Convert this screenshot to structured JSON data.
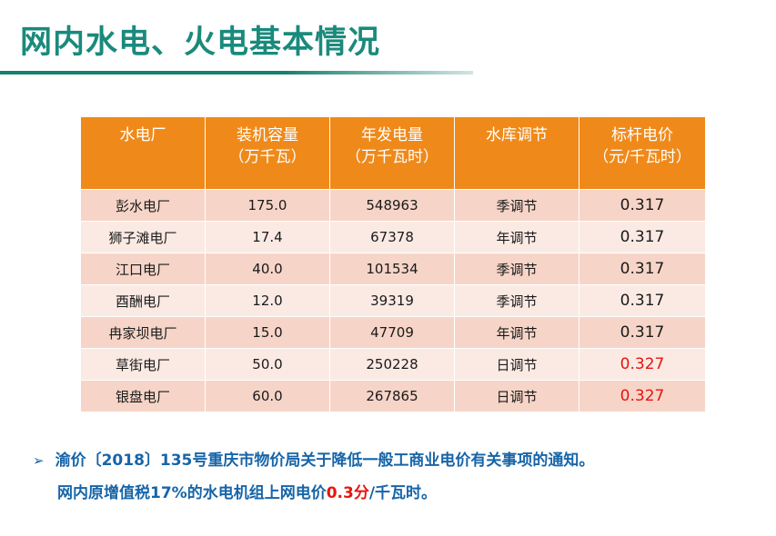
{
  "title": "网内水电、火电基本情况",
  "table": {
    "headers": [
      {
        "line1": "水电厂",
        "line2": ""
      },
      {
        "line1": "装机容量",
        "line2": "（万千瓦）"
      },
      {
        "line1": "年发电量",
        "line2": "（万千瓦时）"
      },
      {
        "line1": "水库调节",
        "line2": ""
      },
      {
        "line1": "标杆电价",
        "line2": "（元/千瓦时）"
      }
    ],
    "rows": [
      {
        "name": "彭水电厂",
        "capacity": "175.0",
        "generation": "548963",
        "regulation": "季调节",
        "price": "0.317",
        "price_highlight": false
      },
      {
        "name": "狮子滩电厂",
        "capacity": "17.4",
        "generation": "67378",
        "regulation": "年调节",
        "price": "0.317",
        "price_highlight": false
      },
      {
        "name": "江口电厂",
        "capacity": "40.0",
        "generation": "101534",
        "regulation": "季调节",
        "price": "0.317",
        "price_highlight": false
      },
      {
        "name": "酉酬电厂",
        "capacity": "12.0",
        "generation": "39319",
        "regulation": "季调节",
        "price": "0.317",
        "price_highlight": false
      },
      {
        "name": "冉家坝电厂",
        "capacity": "15.0",
        "generation": "47709",
        "regulation": "年调节",
        "price": "0.317",
        "price_highlight": false
      },
      {
        "name": "草街电厂",
        "capacity": "50.0",
        "generation": "250228",
        "regulation": "日调节",
        "price": "0.327",
        "price_highlight": true
      },
      {
        "name": "银盘电厂",
        "capacity": "60.0",
        "generation": "267865",
        "regulation": "日调节",
        "price": "0.327",
        "price_highlight": true
      }
    ]
  },
  "note": {
    "bullet": "➢",
    "line1": "渝价〔2018〕135号重庆市物价局关于降低一般工商业电价有关事项的通知。",
    "line2_before": "网内原增值税17%的水电机组上网电价",
    "line2_highlight": "0.3分",
    "line2_after": "/千瓦时。"
  },
  "colors": {
    "title": "#1a8a7c",
    "header_bg": "#ef8a1a",
    "row_odd": "#f6d5c8",
    "row_even": "#fbeae4",
    "note_text": "#1765a8",
    "highlight_red": "#e8140e"
  }
}
